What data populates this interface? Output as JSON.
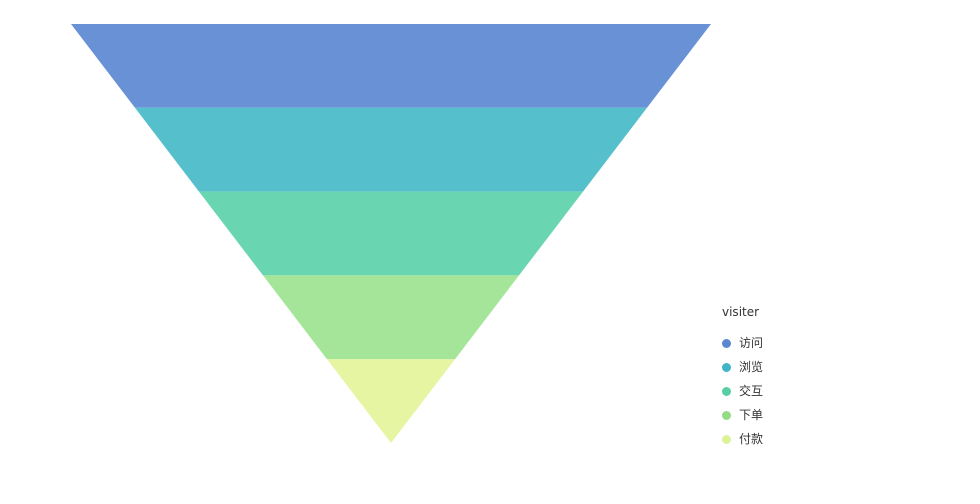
{
  "chart_data": {
    "type": "funnel",
    "title": "",
    "legend_title": "visiter",
    "legend_position": "bottom-right",
    "categories": [
      "访问",
      "浏览",
      "交互",
      "下单",
      "付款"
    ],
    "values": [
      5,
      4,
      3,
      2,
      1
    ],
    "series_colors": [
      "#6891d6",
      "#55bfcb",
      "#6ad6b1",
      "#a5e59a",
      "#e5f5a2"
    ],
    "legend_colors": [
      "#5b86d2",
      "#3fb4c4",
      "#56cfa2",
      "#93dc86",
      "#dcf296"
    ]
  }
}
